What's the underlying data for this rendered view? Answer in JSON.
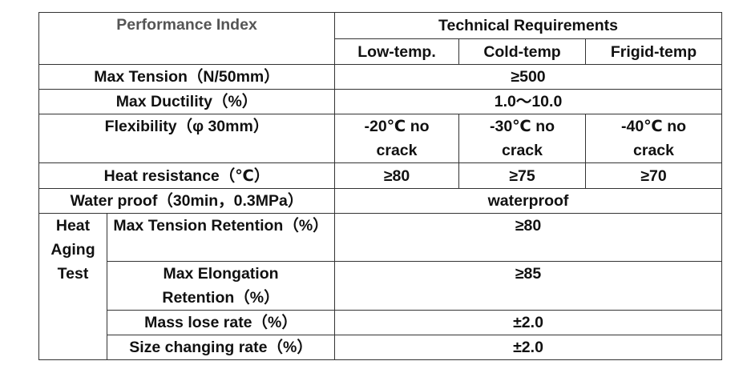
{
  "header": {
    "performance_index": "Performance Index",
    "technical_requirements": "Technical Requirements",
    "columns": [
      "Low-temp.",
      "Cold-temp",
      "Frigid-temp"
    ]
  },
  "rows": [
    {
      "label": "Max Tension（N/50mm）",
      "values": [
        "≥500"
      ]
    },
    {
      "label": "Max Ductility（%）",
      "values": [
        "1.0～10.0"
      ]
    },
    {
      "label": "Flexibility（φ 30mm）",
      "values": [
        "-20℃ no crack",
        "-30℃ no crack",
        "-40℃ no crack"
      ]
    },
    {
      "label": "Heat resistance（℃）",
      "values": [
        "≥80",
        "≥75",
        "≥70"
      ]
    },
    {
      "label": "Water proof（30min，0.3MPa）",
      "values": [
        "waterproof"
      ]
    }
  ],
  "heat_aging": {
    "label": "Heat Aging Test",
    "rows": [
      {
        "label": "Max Tension Retention（%）",
        "value": "≥80"
      },
      {
        "label": "Max Elongation Retention（%）",
        "value": "≥85"
      },
      {
        "label": "Mass lose rate（%）",
        "value": "±2.0"
      },
      {
        "label": "Size changing rate（%）",
        "value": "±2.0"
      }
    ]
  }
}
